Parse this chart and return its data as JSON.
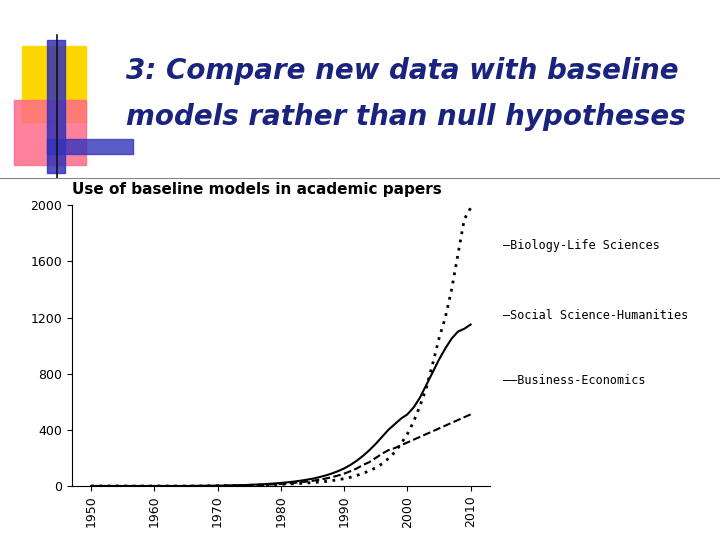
{
  "title_line1": "3: Compare new data with baseline",
  "title_line2": "models rather than null hypotheses",
  "subtitle": "Use of baseline models in academic papers",
  "title_color": "#1a237e",
  "background_color": "#ffffff",
  "years": [
    1950,
    1951,
    1952,
    1953,
    1954,
    1955,
    1956,
    1957,
    1958,
    1959,
    1960,
    1961,
    1962,
    1963,
    1964,
    1965,
    1966,
    1967,
    1968,
    1969,
    1970,
    1971,
    1972,
    1973,
    1974,
    1975,
    1976,
    1977,
    1978,
    1979,
    1980,
    1981,
    1982,
    1983,
    1984,
    1985,
    1986,
    1987,
    1988,
    1989,
    1990,
    1991,
    1992,
    1993,
    1994,
    1995,
    1996,
    1997,
    1998,
    1999,
    2000,
    2001,
    2002,
    2003,
    2004,
    2005,
    2006,
    2007,
    2008,
    2009,
    2010
  ],
  "biology": [
    0,
    0,
    0,
    0,
    0,
    0,
    0,
    0,
    0,
    0,
    0,
    0,
    0,
    0,
    0,
    0,
    0,
    1,
    1,
    1,
    2,
    2,
    3,
    3,
    4,
    5,
    6,
    7,
    8,
    10,
    12,
    14,
    16,
    18,
    21,
    24,
    28,
    32,
    38,
    44,
    52,
    62,
    75,
    90,
    108,
    130,
    158,
    195,
    240,
    300,
    370,
    460,
    570,
    700,
    870,
    1050,
    1200,
    1400,
    1650,
    1900,
    1980
  ],
  "social": [
    0,
    0,
    0,
    0,
    0,
    0,
    0,
    0,
    0,
    0,
    0,
    0,
    0,
    0,
    0,
    0,
    1,
    1,
    1,
    2,
    2,
    3,
    4,
    5,
    6,
    8,
    10,
    12,
    15,
    18,
    22,
    26,
    31,
    37,
    44,
    52,
    62,
    74,
    88,
    105,
    125,
    150,
    180,
    215,
    255,
    300,
    350,
    400,
    440,
    480,
    510,
    560,
    630,
    720,
    810,
    900,
    980,
    1050,
    1100,
    1120,
    1150
  ],
  "business": [
    0,
    0,
    0,
    0,
    0,
    0,
    0,
    0,
    0,
    0,
    0,
    0,
    0,
    0,
    0,
    0,
    0,
    0,
    1,
    1,
    1,
    2,
    2,
    3,
    4,
    5,
    6,
    8,
    10,
    12,
    15,
    18,
    22,
    26,
    31,
    37,
    44,
    52,
    62,
    74,
    88,
    105,
    125,
    150,
    170,
    200,
    230,
    255,
    270,
    290,
    310,
    330,
    350,
    370,
    390,
    410,
    430,
    450,
    470,
    490,
    510
  ],
  "ylim": [
    0,
    2000
  ],
  "yticks": [
    0,
    400,
    800,
    1200,
    1600,
    2000
  ],
  "xticks": [
    1950,
    1960,
    1970,
    1980,
    1990,
    2000,
    2010
  ],
  "legend_labels": [
    "Biology-Life Sciences",
    "Social Science-Humanities",
    "Business-Economics"
  ],
  "line_styles": [
    ":",
    "-",
    "--"
  ],
  "line_color": "#000000",
  "line_width": 1.5,
  "subtitle_fontsize": 11,
  "axis_fontsize": 9,
  "title_fontsize": 20,
  "logo_yellow": "#FFD700",
  "logo_pink": "#FF6B8A",
  "logo_blue": "#3333BB",
  "separator_color": "#888888"
}
